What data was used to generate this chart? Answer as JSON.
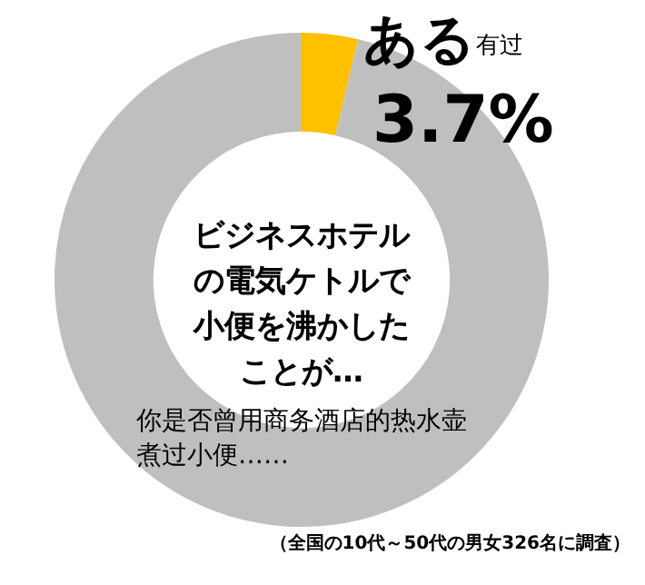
{
  "chart_data": {
    "type": "donut",
    "title": "ビジネスホテルの電気ケトルで小便を沸かしたことが…",
    "subtitle": "你是否曾用商务酒店的热水壶煮过小便……",
    "categories": [
      "ある",
      null
    ],
    "values": [
      3.7,
      96.3
    ],
    "colors": [
      "#ffc000",
      "#bfbfbf"
    ],
    "value_labels": [
      "3.7%",
      null
    ],
    "annotations": [
      "有过",
      "（全国の10代～50代の男女326名に調査）"
    ],
    "legend": false
  }
}
